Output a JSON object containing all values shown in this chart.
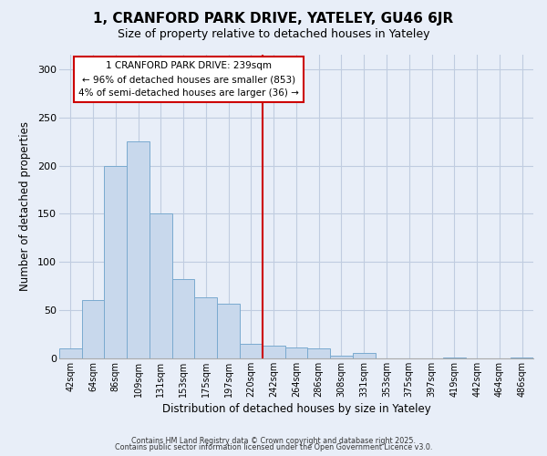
{
  "title": "1, CRANFORD PARK DRIVE, YATELEY, GU46 6JR",
  "subtitle": "Size of property relative to detached houses in Yateley",
  "xlabel": "Distribution of detached houses by size in Yateley",
  "ylabel": "Number of detached properties",
  "bar_labels": [
    "42sqm",
    "64sqm",
    "86sqm",
    "109sqm",
    "131sqm",
    "153sqm",
    "175sqm",
    "197sqm",
    "220sqm",
    "242sqm",
    "264sqm",
    "286sqm",
    "308sqm",
    "331sqm",
    "353sqm",
    "375sqm",
    "397sqm",
    "419sqm",
    "442sqm",
    "464sqm",
    "486sqm"
  ],
  "bar_values": [
    10,
    60,
    200,
    225,
    150,
    82,
    63,
    57,
    15,
    13,
    11,
    10,
    3,
    6,
    0,
    0,
    0,
    1,
    0,
    0,
    1
  ],
  "bar_color": "#c8d8ec",
  "bar_edge_color": "#7aaacf",
  "annotation_line1": "1 CRANFORD PARK DRIVE: 239sqm",
  "annotation_line2": "← 96% of detached houses are smaller (853)",
  "annotation_line3": "4% of semi-detached houses are larger (36) →",
  "vline_color": "#cc0000",
  "ylim": [
    0,
    315
  ],
  "yticks": [
    0,
    50,
    100,
    150,
    200,
    250,
    300
  ],
  "footer1": "Contains HM Land Registry data © Crown copyright and database right 2025.",
  "footer2": "Contains public sector information licensed under the Open Government Licence v3.0.",
  "background_color": "#e8eef8",
  "plot_bg_color": "#e8eef8",
  "grid_color": "#c0cce0"
}
